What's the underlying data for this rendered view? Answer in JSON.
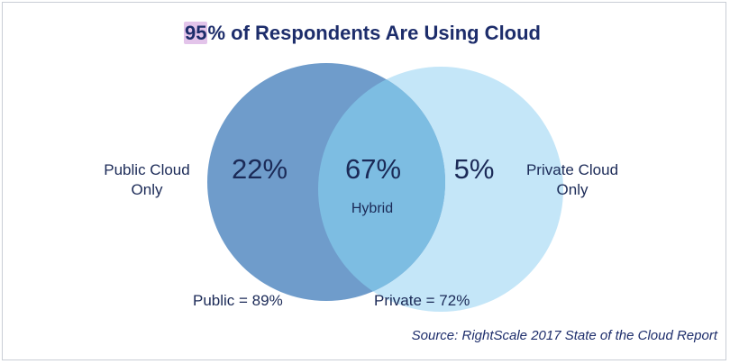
{
  "title": {
    "highlight": "95",
    "rest": "% of Respondents Are Using Cloud"
  },
  "venn": {
    "left_set": {
      "name": "Public",
      "outside_label_line1": "Public Cloud",
      "outside_label_line2": "Only",
      "only_percent": "22%",
      "total_label": "Public = 89%",
      "color": "#6f9ccb"
    },
    "right_set": {
      "name": "Private",
      "outside_label_line1": "Private Cloud",
      "outside_label_line2": "Only",
      "only_percent": "5%",
      "total_label": "Private = 72%",
      "color": "#c4e6f8"
    },
    "overlap": {
      "percent": "67%",
      "label": "Hybrid",
      "color": "#7dbde2"
    }
  },
  "source": "Source: RightScale 2017 State of the Cloud Report"
}
